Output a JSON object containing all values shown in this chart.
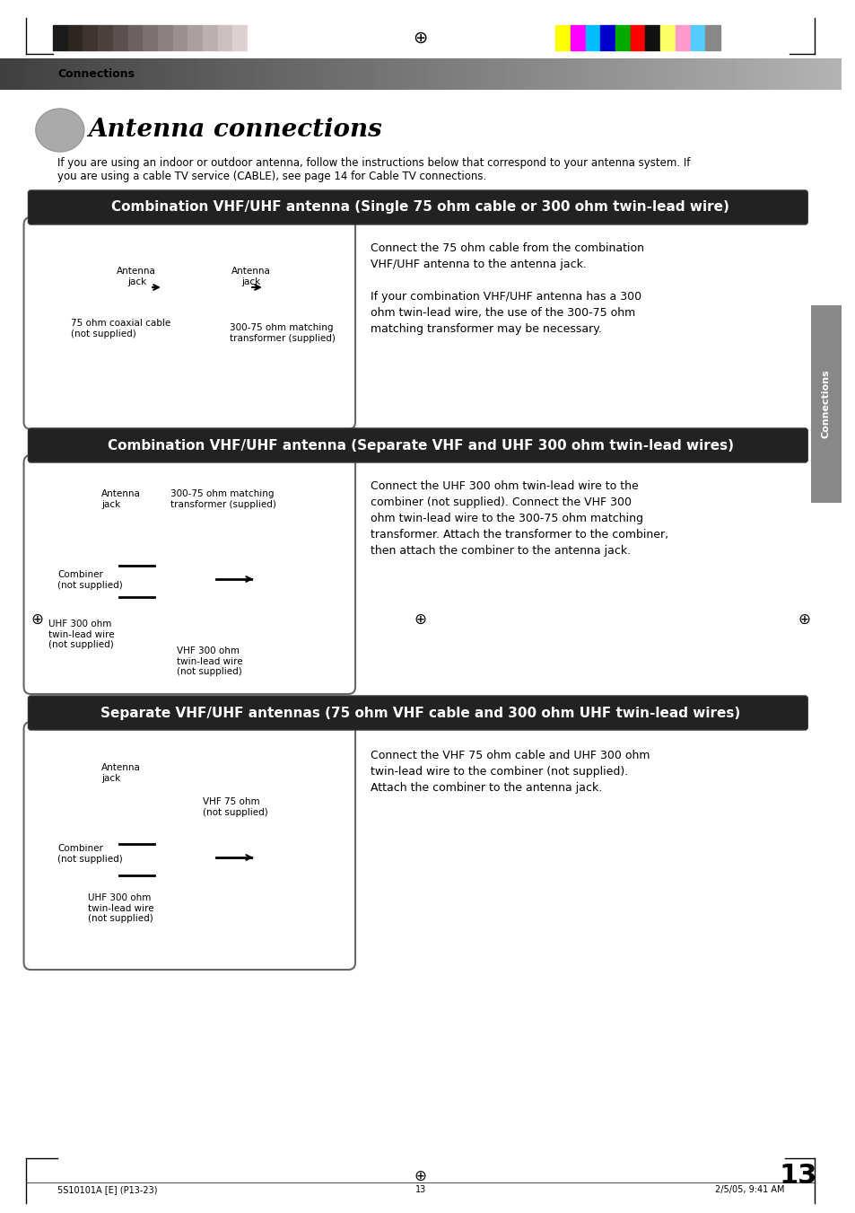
{
  "page_bg": "#ffffff",
  "header_bar_color": "#555555",
  "header_text": "Connections",
  "title": "Antenna connections",
  "intro_text": "If you are using an indoor or outdoor antenna, follow the instructions below that correspond to your antenna system. If\nyou are using a cable TV service (CABLE), see page 14 for Cable TV connections.",
  "section1_title": "Combination VHF/UHF antenna (Single 75 ohm cable or 300 ohm twin-lead wire)",
  "section1_desc": "Connect the 75 ohm cable from the combination\nVHF/UHF antenna to the antenna jack.\n\nIf your combination VHF/UHF antenna has a 300\nohm twin-lead wire, the use of the 300-75 ohm\nmatching transformer may be necessary.",
  "section1_labels": [
    "Antenna\njack",
    "Antenna\njack",
    "75 ohm coaxial cable\n(not supplied)",
    "300-75 ohm matching\ntransformer (supplied)"
  ],
  "section2_title": "Combination VHF/UHF antenna (Separate VHF and UHF 300 ohm twin-lead wires)",
  "section2_desc": "Connect the UHF 300 ohm twin-lead wire to the\ncombiner (not supplied). Connect the VHF 300\nohm twin-lead wire to the 300-75 ohm matching\ntransformer. Attach the transformer to the combiner,\nthen attach the combiner to the antenna jack.",
  "section2_labels": [
    "Antenna\njack",
    "300-75 ohm matching\ntransformer (supplied)",
    "Combiner\n(not supplied)",
    "UHF 300 ohm\ntwin-lead wire\n(not supplied)",
    "VHF 300 ohm\ntwin-lead wire\n(not supplied)"
  ],
  "section3_title": "Separate VHF/UHF antennas (75 ohm VHF cable and 300 ohm UHF twin-lead wires)",
  "section3_desc": "Connect the VHF 75 ohm cable and UHF 300 ohm\ntwin-lead wire to the combiner (not supplied).\nAttach the combiner to the antenna jack.",
  "section3_labels": [
    "Antenna\njack",
    "VHF 75 ohm\n(not supplied)",
    "Combiner\n(not supplied)",
    "UHF 300 ohm\ntwin-lead wire\n(not supplied)"
  ],
  "side_tab_text": "Connections",
  "page_number": "13",
  "footer_left": "5S10101A [E] (P13-23)",
  "footer_center": "13",
  "footer_right": "2/5/05, 9:41 AM",
  "color_bars_left": [
    "#1a1a1a",
    "#2d2520",
    "#3d3330",
    "#4a403c",
    "#5a5050",
    "#6b6160",
    "#7a7070",
    "#8a8080",
    "#9a9090",
    "#aaa0a0",
    "#bbb0b0",
    "#ccc0c0",
    "#ddd0d0",
    "#ffffff"
  ],
  "color_bars_right": [
    "#ffff00",
    "#ff00ff",
    "#00bfff",
    "#0000cc",
    "#00aa00",
    "#ff0000",
    "#111111",
    "#ffff66",
    "#ff99cc",
    "#55ccff",
    "#888888"
  ]
}
